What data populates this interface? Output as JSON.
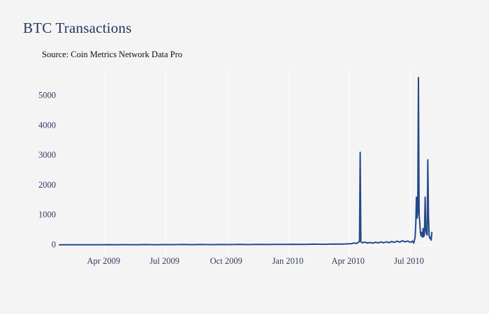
{
  "header": {
    "title": "BTC Transactions",
    "subtitle": "Source: Coin Metrics Network Data Pro"
  },
  "colors": {
    "background": "#f5f4f5",
    "title": "#26355c",
    "subtitle": "#0c0c0c",
    "line": "#24498a",
    "grid": "#fcfcfc",
    "axis_labels": "#2e3c5e"
  },
  "chart_data": {
    "type": "line",
    "title": "BTC Transactions",
    "subtitle": "Source: Coin Metrics Network Data Pro",
    "series_name": "BTC Transactions",
    "xlabel": "",
    "ylabel": "",
    "ylim": [
      0,
      5800
    ],
    "xlim": [
      "2009-01-23",
      "2010-08-04"
    ],
    "grid": "vertical-only",
    "legend": "none",
    "line_color": "#24498a",
    "grid_color": "#fcfcfc",
    "axis_label_color": "#2e3c5e",
    "y_ticks": [
      {
        "label": "0",
        "value": 0
      },
      {
        "label": "1000",
        "value": 1000
      },
      {
        "label": "2000",
        "value": 2000
      },
      {
        "label": "3000",
        "value": 3000
      },
      {
        "label": "4000",
        "value": 4000
      },
      {
        "label": "5000",
        "value": 5000
      }
    ],
    "x_ticks": [
      {
        "label": "Apr 2009",
        "date": "2009-04-01"
      },
      {
        "label": "Jul 2009",
        "date": "2009-07-01"
      },
      {
        "label": "Oct 2009",
        "date": "2009-10-01"
      },
      {
        "label": "Jan 2010",
        "date": "2010-01-01"
      },
      {
        "label": "Apr 2010",
        "date": "2010-04-01"
      },
      {
        "label": "Jul 2010",
        "date": "2010-07-01"
      }
    ],
    "points": [
      [
        "2009-01-23",
        2
      ],
      [
        "2009-02-08",
        6
      ],
      [
        "2009-02-22",
        4
      ],
      [
        "2009-03-08",
        8
      ],
      [
        "2009-03-22",
        5
      ],
      [
        "2009-04-05",
        9
      ],
      [
        "2009-04-19",
        6
      ],
      [
        "2009-05-03",
        10
      ],
      [
        "2009-05-17",
        7
      ],
      [
        "2009-05-31",
        11
      ],
      [
        "2009-06-14",
        8
      ],
      [
        "2009-06-28",
        12
      ],
      [
        "2009-07-12",
        9
      ],
      [
        "2009-07-26",
        14
      ],
      [
        "2009-08-09",
        10
      ],
      [
        "2009-08-23",
        13
      ],
      [
        "2009-09-06",
        10
      ],
      [
        "2009-09-20",
        15
      ],
      [
        "2009-10-04",
        11
      ],
      [
        "2009-10-18",
        16
      ],
      [
        "2009-11-01",
        12
      ],
      [
        "2009-11-15",
        18
      ],
      [
        "2009-11-29",
        14
      ],
      [
        "2009-12-13",
        19
      ],
      [
        "2009-12-27",
        16
      ],
      [
        "2010-01-10",
        22
      ],
      [
        "2010-01-24",
        18
      ],
      [
        "2010-02-07",
        26
      ],
      [
        "2010-02-21",
        22
      ],
      [
        "2010-03-07",
        30
      ],
      [
        "2010-03-21",
        26
      ],
      [
        "2010-04-04",
        40
      ],
      [
        "2010-04-08",
        65
      ],
      [
        "2010-04-11",
        50
      ],
      [
        "2010-04-14",
        80
      ],
      [
        "2010-04-16",
        120
      ],
      [
        "2010-04-17",
        3100
      ],
      [
        "2010-04-18",
        110
      ],
      [
        "2010-04-20",
        70
      ],
      [
        "2010-04-24",
        95
      ],
      [
        "2010-04-28",
        60
      ],
      [
        "2010-05-02",
        85
      ],
      [
        "2010-05-06",
        55
      ],
      [
        "2010-05-10",
        90
      ],
      [
        "2010-05-14",
        65
      ],
      [
        "2010-05-18",
        100
      ],
      [
        "2010-05-22",
        70
      ],
      [
        "2010-05-26",
        105
      ],
      [
        "2010-05-30",
        75
      ],
      [
        "2010-06-03",
        115
      ],
      [
        "2010-06-07",
        85
      ],
      [
        "2010-06-11",
        125
      ],
      [
        "2010-06-15",
        90
      ],
      [
        "2010-06-19",
        140
      ],
      [
        "2010-06-23",
        100
      ],
      [
        "2010-06-27",
        130
      ],
      [
        "2010-06-30",
        95
      ],
      [
        "2010-07-02",
        90
      ],
      [
        "2010-07-04",
        130
      ],
      [
        "2010-07-06",
        60
      ],
      [
        "2010-07-08",
        250
      ],
      [
        "2010-07-09",
        700
      ],
      [
        "2010-07-10",
        1600
      ],
      [
        "2010-07-11",
        900
      ],
      [
        "2010-07-12",
        1100
      ],
      [
        "2010-07-13",
        5600
      ],
      [
        "2010-07-14",
        1000
      ],
      [
        "2010-07-15",
        750
      ],
      [
        "2010-07-16",
        400
      ],
      [
        "2010-07-17",
        300
      ],
      [
        "2010-07-18",
        420
      ],
      [
        "2010-07-19",
        260
      ],
      [
        "2010-07-20",
        550
      ],
      [
        "2010-07-21",
        280
      ],
      [
        "2010-07-22",
        350
      ],
      [
        "2010-07-23",
        1600
      ],
      [
        "2010-07-24",
        500
      ],
      [
        "2010-07-25",
        380
      ],
      [
        "2010-07-26",
        330
      ],
      [
        "2010-07-27",
        2850
      ],
      [
        "2010-07-28",
        950
      ],
      [
        "2010-07-29",
        320
      ],
      [
        "2010-07-30",
        220
      ],
      [
        "2010-07-31",
        260
      ],
      [
        "2010-08-01",
        160
      ],
      [
        "2010-08-02",
        420
      ]
    ]
  }
}
